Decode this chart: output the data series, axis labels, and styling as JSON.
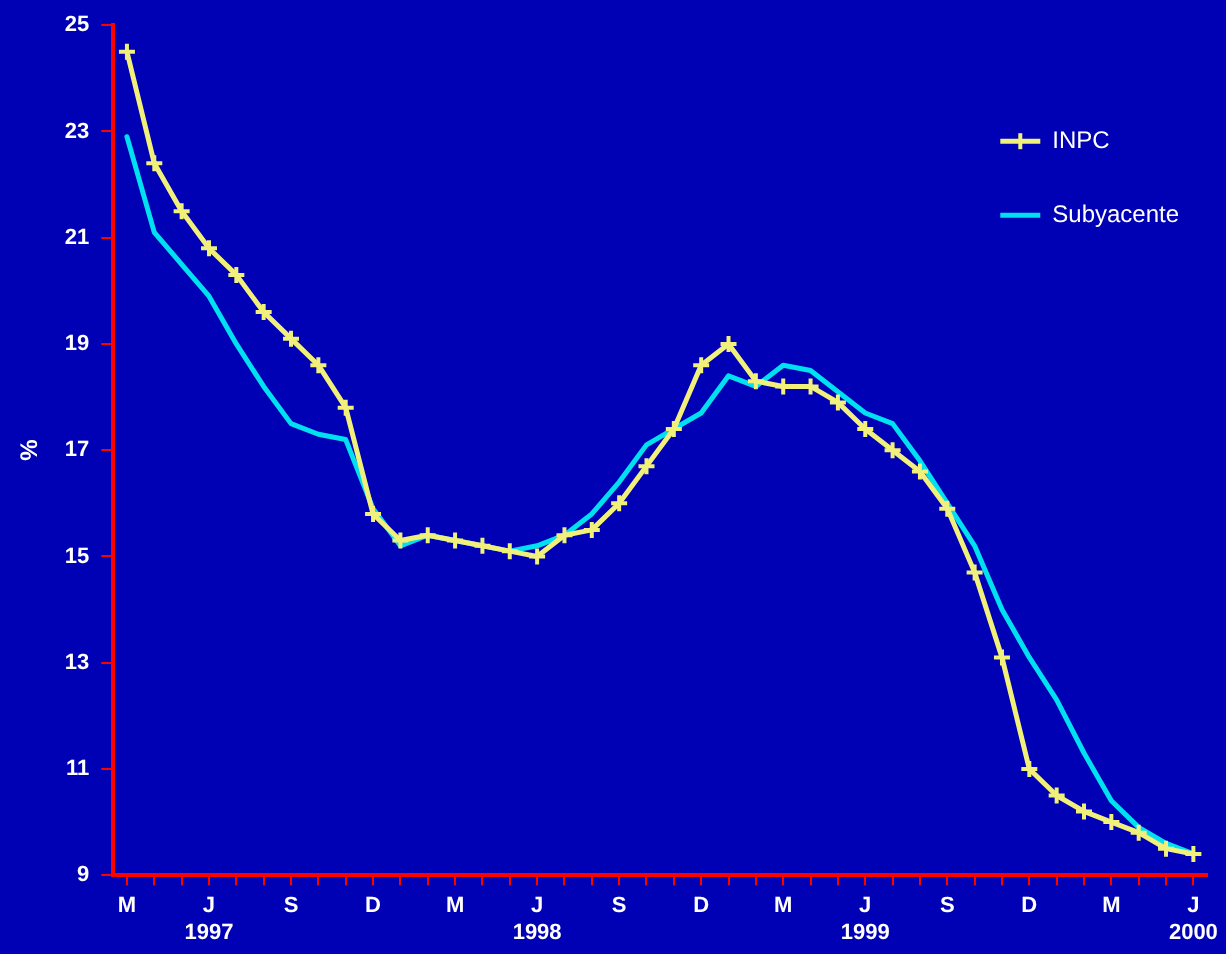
{
  "chart_data": {
    "type": "line",
    "ylabel": "%",
    "categories": [
      "M",
      null,
      null,
      "J\n1997",
      null,
      null,
      "S",
      null,
      null,
      "D",
      null,
      null,
      "M",
      null,
      null,
      "J\n1998",
      null,
      null,
      "S",
      null,
      null,
      "D",
      null,
      null,
      "M",
      null,
      null,
      "J\n1999",
      null,
      null,
      "S",
      null,
      null,
      "D",
      null,
      null,
      "M",
      null,
      null,
      "J\n2000"
    ],
    "series": [
      {
        "name": "INPC",
        "color": "#f0f07a",
        "marker": "cross",
        "values": [
          24.5,
          22.4,
          21.5,
          20.8,
          20.3,
          19.6,
          19.1,
          18.6,
          17.8,
          15.8,
          15.3,
          15.4,
          15.3,
          15.2,
          15.1,
          15.0,
          15.4,
          15.5,
          16.0,
          16.7,
          17.4,
          18.6,
          19.0,
          18.3,
          18.2,
          18.2,
          17.9,
          17.4,
          17.0,
          16.6,
          15.9,
          14.7,
          13.1,
          11.0,
          10.5,
          10.2,
          10.0,
          9.8,
          9.5,
          9.4
        ]
      },
      {
        "name": "Subyacente",
        "color": "#00e0f0",
        "marker": "none",
        "values": [
          22.9,
          21.1,
          20.5,
          19.9,
          19.0,
          18.2,
          17.5,
          17.3,
          17.2,
          15.9,
          15.2,
          15.4,
          15.3,
          15.2,
          15.1,
          15.2,
          15.4,
          15.8,
          16.4,
          17.1,
          17.4,
          17.7,
          18.4,
          18.2,
          18.6,
          18.5,
          18.1,
          17.7,
          17.5,
          16.8,
          16.0,
          15.2,
          14.0,
          13.1,
          12.3,
          11.3,
          10.4,
          9.9,
          9.6,
          9.4
        ]
      }
    ],
    "ylim": [
      9,
      25
    ],
    "yticks": [
      9,
      11,
      13,
      15,
      17,
      19,
      21,
      23,
      25
    ],
    "grid": false,
    "legend": "top right",
    "line_style": "solid"
  }
}
